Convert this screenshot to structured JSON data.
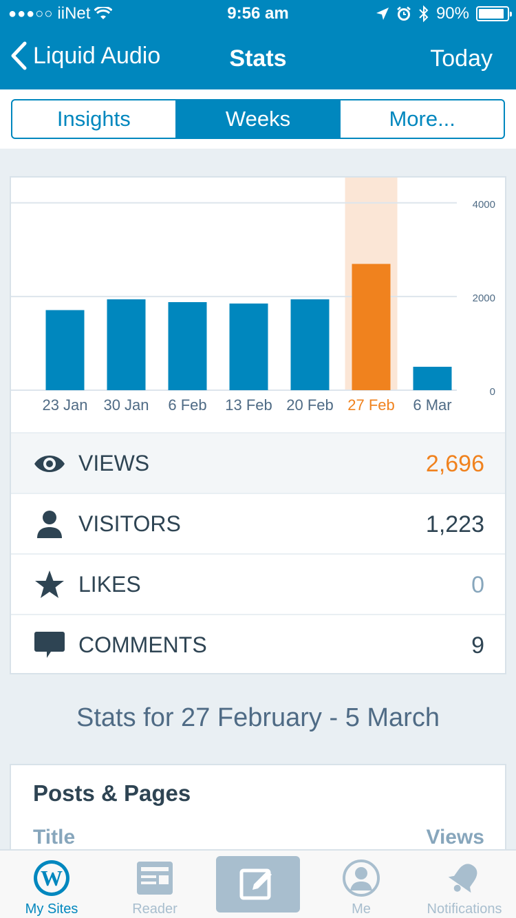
{
  "status_bar": {
    "signal_dots": "●●●○○",
    "carrier": "iiNet",
    "time": "9:56 am",
    "battery": "90%",
    "battery_level": 0.9
  },
  "nav": {
    "back_label": "Liquid Audio",
    "title": "Stats",
    "right_label": "Today"
  },
  "segments": [
    {
      "label": "Insights",
      "active": false
    },
    {
      "label": "Weeks",
      "active": true
    },
    {
      "label": "More...",
      "active": false
    }
  ],
  "colors": {
    "brand_blue": "#0087be",
    "highlight_orange": "#f0821e",
    "highlight_band": "#fbe6d6",
    "text_dark": "#2e4453",
    "text_muted": "#87a6bc"
  },
  "chart_data": {
    "type": "bar",
    "categories": [
      "23 Jan",
      "30 Jan",
      "6 Feb",
      "13 Feb",
      "20 Feb",
      "27 Feb",
      "6 Mar"
    ],
    "values": [
      1710,
      1940,
      1880,
      1850,
      1940,
      2696,
      500
    ],
    "selected_index": 5,
    "y_ticks": [
      "4000",
      "2000",
      "0"
    ],
    "ylim": [
      0,
      4540
    ],
    "grid": true
  },
  "stats": [
    {
      "icon": "eye-icon",
      "label": "VIEWS",
      "value": "2,696",
      "selected": true
    },
    {
      "icon": "person-icon",
      "label": "VISITORS",
      "value": "1,223",
      "selected": false
    },
    {
      "icon": "star-icon",
      "label": "LIKES",
      "value": "0",
      "selected": false
    },
    {
      "icon": "comment-icon",
      "label": "COMMENTS",
      "value": "9",
      "selected": false
    }
  ],
  "stats_for": "Stats for 27 February - 5 March",
  "posts": {
    "title": "Posts & Pages",
    "col_title": "Title",
    "col_views": "Views"
  },
  "tabs": [
    {
      "label": "My Sites",
      "icon": "wordpress-icon",
      "active": true
    },
    {
      "label": "Reader",
      "icon": "reader-icon",
      "active": false
    },
    {
      "label": "",
      "icon": "write-icon",
      "active": false
    },
    {
      "label": "Me",
      "icon": "me-icon",
      "active": false
    },
    {
      "label": "Notifications",
      "icon": "bell-icon",
      "active": false
    }
  ]
}
